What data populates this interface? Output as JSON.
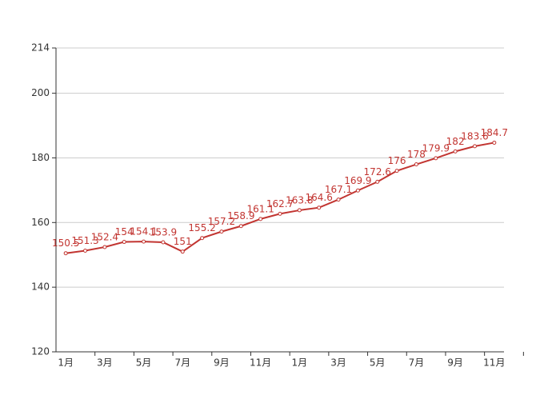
{
  "chart_data": {
    "type": "line",
    "categories": [
      "1月",
      null,
      "3月",
      null,
      "5月",
      null,
      "7月",
      null,
      "9月",
      null,
      "11月",
      null,
      "1月",
      null,
      "3月",
      null,
      "5月",
      null,
      "7月",
      null,
      "9月",
      null,
      "11月"
    ],
    "series": [
      {
        "color": "#c23531",
        "values": [
          150.5,
          151.3,
          152.4,
          154,
          154.1,
          153.9,
          151,
          155.2,
          157.2,
          158.9,
          161.1,
          162.7,
          163.8,
          164.6,
          167.1,
          169.9,
          172.6,
          176,
          178,
          179.9,
          182,
          183.6,
          184.7
        ]
      }
    ],
    "ylim": [
      120,
      214
    ],
    "yticks": [
      120,
      140,
      160,
      180,
      200,
      214
    ],
    "grid": true
  }
}
